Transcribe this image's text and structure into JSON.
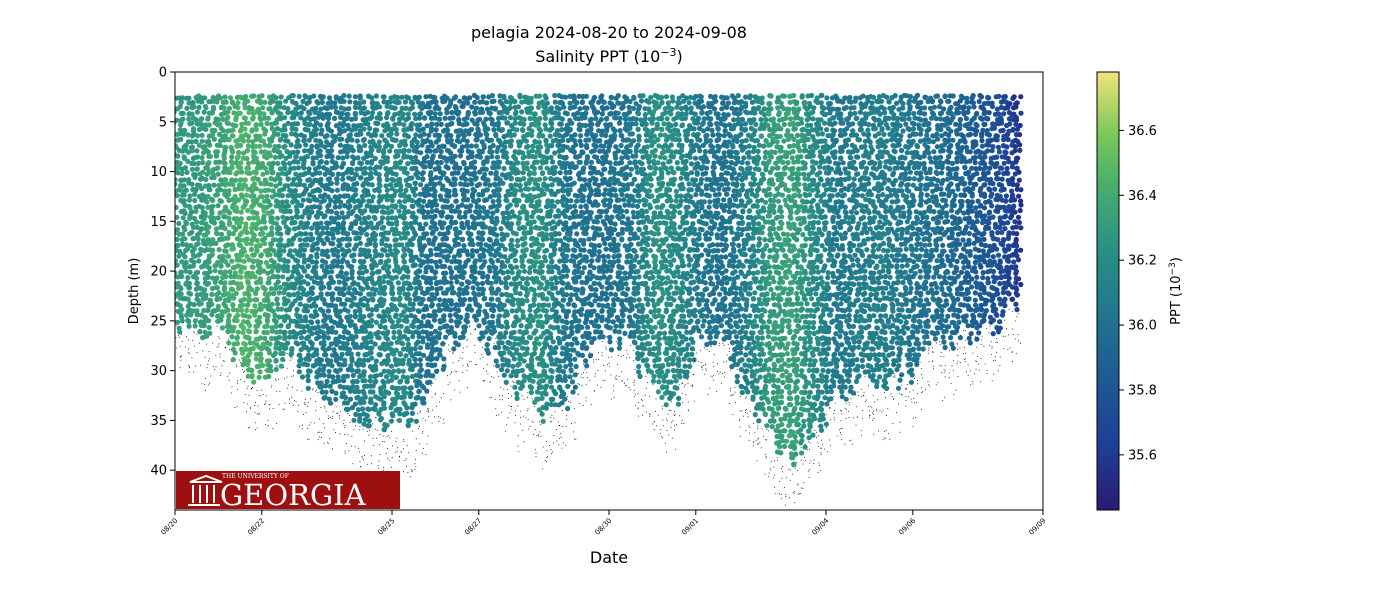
{
  "chart_data": {
    "type": "scatter",
    "title": "pelagia 2024-08-20 to 2024-09-08",
    "subtitle": "Salinity PPT (10",
    "subtitle_sup": "−3",
    "subtitle_end": ")",
    "xlabel": "Date",
    "ylabel": "Depth (m)",
    "x_ticks": [
      "08/20",
      "08/22",
      "08/25",
      "08/27",
      "08/30",
      "09/01",
      "09/04",
      "09/06",
      "09/09"
    ],
    "x_tick_dates": [
      "2024-08-20",
      "2024-08-22",
      "2024-08-25",
      "2024-08-27",
      "2024-08-30",
      "2024-09-01",
      "2024-09-04",
      "2024-09-06",
      "2024-09-09"
    ],
    "xlim": [
      "2024-08-20",
      "2024-09-09"
    ],
    "ylim": [
      44,
      0
    ],
    "y_ticks": [
      0,
      5,
      10,
      15,
      20,
      25,
      30,
      35,
      40
    ],
    "y_inverted": true,
    "grid": false,
    "colormap": "viridis",
    "colorbar": {
      "label": "PPT (10",
      "label_sup": "−3",
      "label_end": ")",
      "range": [
        35.43,
        36.78
      ],
      "ticks": [
        35.6,
        35.8,
        36.0,
        36.2,
        36.4,
        36.6
      ]
    },
    "profiles": [
      {
        "date": "2024-08-20",
        "max_depth": 0,
        "salinity": 36.2
      },
      {
        "date": "2024-08-20",
        "max_depth": 25,
        "salinity": 36.3
      },
      {
        "date": "2024-08-21",
        "max_depth": 26,
        "salinity": 36.3
      },
      {
        "date": "2024-08-21",
        "max_depth": 26,
        "salinity": 36.35
      },
      {
        "date": "2024-08-22",
        "max_depth": 30,
        "salinity": 36.45
      },
      {
        "date": "2024-08-22",
        "max_depth": 31,
        "salinity": 36.4
      },
      {
        "date": "2024-08-23",
        "max_depth": 29,
        "salinity": 36.2
      },
      {
        "date": "2024-08-23",
        "max_depth": 31,
        "salinity": 36.1
      },
      {
        "date": "2024-08-24",
        "max_depth": 33,
        "salinity": 36.05
      },
      {
        "date": "2024-08-24",
        "max_depth": 34,
        "salinity": 36.1
      },
      {
        "date": "2024-08-25",
        "max_depth": 35,
        "salinity": 36.15
      },
      {
        "date": "2024-08-25",
        "max_depth": 35,
        "salinity": 36.2
      },
      {
        "date": "2024-08-26",
        "max_depth": 33,
        "salinity": 36.0
      },
      {
        "date": "2024-08-26",
        "max_depth": 27,
        "salinity": 36.0
      },
      {
        "date": "2024-08-27",
        "max_depth": 25,
        "salinity": 36.0
      },
      {
        "date": "2024-08-27",
        "max_depth": 28,
        "salinity": 36.05
      },
      {
        "date": "2024-08-28",
        "max_depth": 33,
        "salinity": 36.2
      },
      {
        "date": "2024-08-28",
        "max_depth": 34,
        "salinity": 36.25
      },
      {
        "date": "2024-08-29",
        "max_depth": 33,
        "salinity": 36.05
      },
      {
        "date": "2024-08-29",
        "max_depth": 28,
        "salinity": 36.0
      },
      {
        "date": "2024-08-30",
        "max_depth": 27,
        "salinity": 36.0
      },
      {
        "date": "2024-08-30",
        "max_depth": 28,
        "salinity": 36.05
      },
      {
        "date": "2024-08-31",
        "max_depth": 33,
        "salinity": 36.25
      },
      {
        "date": "2024-08-31",
        "max_depth": 32,
        "salinity": 36.2
      },
      {
        "date": "2024-09-01",
        "max_depth": 26,
        "salinity": 36.05
      },
      {
        "date": "2024-09-01",
        "max_depth": 27,
        "salinity": 36.0
      },
      {
        "date": "2024-09-02",
        "max_depth": 33,
        "salinity": 36.1
      },
      {
        "date": "2024-09-02",
        "max_depth": 36,
        "salinity": 36.3
      },
      {
        "date": "2024-09-03",
        "max_depth": 40,
        "salinity": 36.35
      },
      {
        "date": "2024-09-03",
        "max_depth": 36,
        "salinity": 36.2
      },
      {
        "date": "2024-09-04",
        "max_depth": 33,
        "salinity": 36.05
      },
      {
        "date": "2024-09-04",
        "max_depth": 31,
        "salinity": 36.1
      },
      {
        "date": "2024-09-05",
        "max_depth": 31,
        "salinity": 36.1
      },
      {
        "date": "2024-09-05",
        "max_depth": 30,
        "salinity": 36.05
      },
      {
        "date": "2024-09-06",
        "max_depth": 28,
        "salinity": 36.0
      },
      {
        "date": "2024-09-06",
        "max_depth": 27,
        "salinity": 35.95
      },
      {
        "date": "2024-09-07",
        "max_depth": 26,
        "salinity": 35.85
      },
      {
        "date": "2024-09-07",
        "max_depth": 25,
        "salinity": 35.75
      },
      {
        "date": "2024-09-08",
        "max_depth": 22,
        "salinity": 35.55
      }
    ]
  },
  "logo": {
    "small_text": "THE UNIVERSITY OF",
    "big_text": "GEORGIA",
    "background": "#9e1010"
  }
}
